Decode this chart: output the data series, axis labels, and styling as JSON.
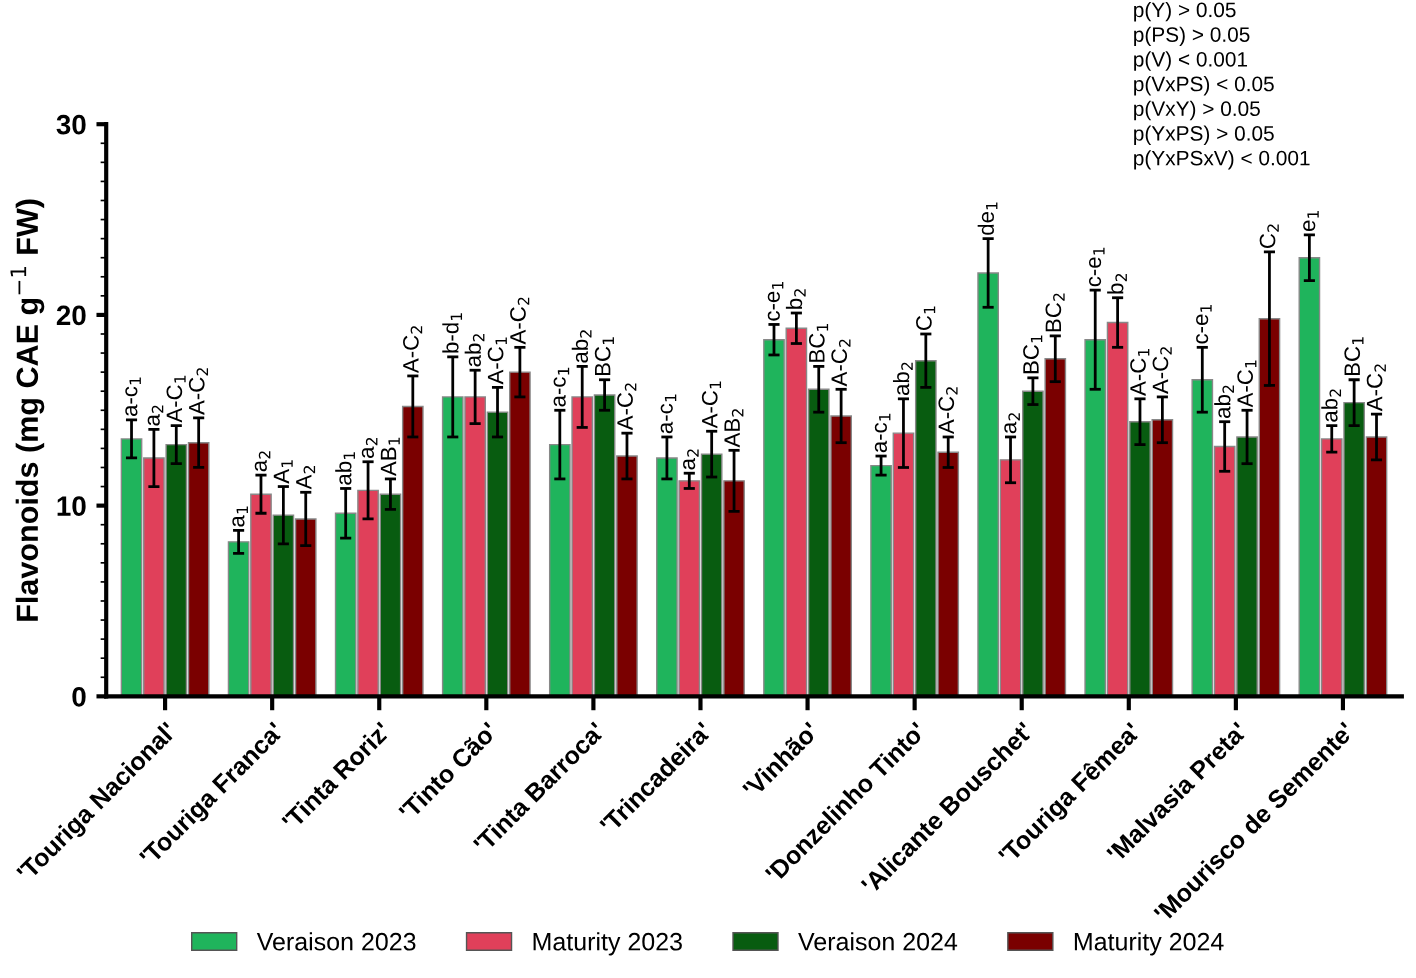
{
  "chart_data": {
    "type": "bar",
    "ylabel": "Flavonoids (mg CAE g$^{−1}$ FW)",
    "categories": [
      "'Touriga Nacional'",
      "'Touriga Franca'",
      "'Tinta Roriz'",
      "'Tinto Cão'",
      "'Tinta Barroca'",
      "'Trincadeira'",
      "'Vinhão'",
      "'Donzelinho Tinto'",
      "'Alicante Bouschet'",
      "'Touriga Fêmea'",
      "'Malvasia Preta'",
      "'Mourisco de Semente'"
    ],
    "series": [
      {
        "name": "Veraison 2023",
        "color": "#1fb45c",
        "values": [
          13.5,
          8.1,
          9.6,
          15.7,
          13.2,
          12.5,
          18.7,
          12.1,
          22.2,
          18.7,
          16.6,
          23.0
        ],
        "errors": [
          1.0,
          0.6,
          1.3,
          2.1,
          1.8,
          1.1,
          0.8,
          0.5,
          1.8,
          2.6,
          1.7,
          1.2
        ]
      },
      {
        "name": "Maturity 2023",
        "color": "#e0405a",
        "values": [
          12.5,
          10.6,
          10.8,
          15.7,
          15.7,
          11.3,
          19.3,
          13.8,
          12.4,
          19.6,
          13.1,
          13.5
        ],
        "errors": [
          1.5,
          1.0,
          1.5,
          1.4,
          1.6,
          0.4,
          0.8,
          1.8,
          1.2,
          1.3,
          1.3,
          0.7
        ]
      },
      {
        "name": "Veraison 2024",
        "color": "#085c10",
        "values": [
          13.2,
          9.5,
          10.6,
          14.9,
          15.8,
          12.7,
          16.1,
          17.6,
          16.0,
          14.4,
          13.6,
          15.4
        ],
        "errors": [
          1.0,
          1.5,
          0.8,
          1.3,
          0.8,
          1.2,
          1.2,
          1.4,
          0.7,
          1.2,
          1.4,
          1.2
        ]
      },
      {
        "name": "Maturity 2024",
        "color": "#7a0000",
        "values": [
          13.3,
          9.3,
          15.2,
          17.0,
          12.6,
          11.3,
          14.7,
          12.8,
          17.7,
          14.5,
          19.8,
          13.6
        ],
        "errors": [
          1.3,
          1.4,
          1.6,
          1.3,
          1.2,
          1.6,
          1.4,
          0.8,
          1.2,
          1.2,
          3.5,
          1.2
        ]
      }
    ],
    "ylim": [
      0,
      30
    ],
    "yticks": [
      0,
      10,
      20,
      30
    ],
    "grid": false,
    "legend": "bottom",
    "annotations": [
      "p(Y) > 0.05\np(PS) > 0.05\np(V) < 0.001\np(VxPS) < 0.05\np(VxY) > 0.05\np(YxPS) > 0.05\np(YxPSxV) < 0.001",
      "a-c$_{1}$",
      "a$_{2}$",
      "A-C$_{1}$",
      "A-C$_{2}$",
      "a$_{1}$",
      "a$_{2}$",
      "A$_{1}$",
      "A$_{2}$",
      "ab$_{1}$",
      "a$_{2}$",
      "AB$_{1}$",
      "A-C$_{2}$",
      "b-d$_{1}$",
      "ab$_{2}$",
      "A-C$_{1}$",
      "A-C$_{2}$",
      "a-c$_{1}$",
      "ab$_{2}$",
      "BC$_{1}$",
      "A-C$_{2}$",
      "a-c$_{1}$",
      "a$_{2}$",
      "A-C$_{1}$",
      "AB$_{2}$",
      "c-e$_{1}$",
      "b$_{2}$",
      "BC$_{1}$",
      "A-C$_{2}$",
      "a-c$_{1}$",
      "ab$_{2}$",
      "C$_{1}$",
      "A-C$_{2}$",
      "de$_{1}$",
      "a$_{2}$",
      "BC$_{1}$",
      "BC$_{2}$",
      "c-e$_{1}$",
      "b$_{2}$",
      "A-C$_{1}$",
      "A-C$_{2}$",
      "c-e$_{1}$",
      "ab$_{2}$",
      "A-C$_{1}$",
      "C$_{2}$",
      "e$_{1}$",
      "ab$_{2}$",
      "BC$_{1}$",
      "A-C$_{2}$"
    ]
  }
}
